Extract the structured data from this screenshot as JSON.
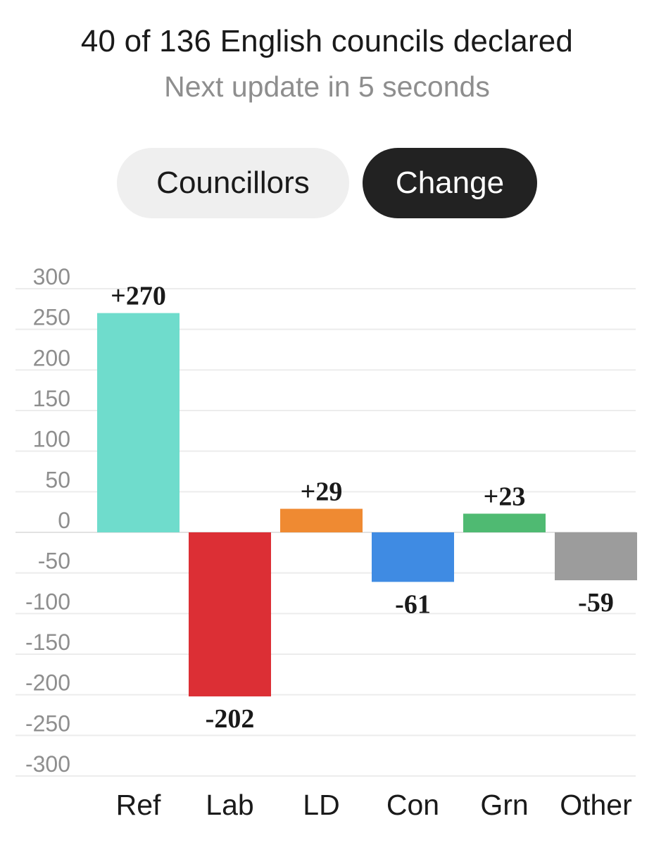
{
  "header": {
    "title": "40 of 136 English councils declared",
    "subtitle": "Next update in 5 seconds"
  },
  "toggle": {
    "councillors_label": "Councillors",
    "change_label": "Change",
    "selected": "Change"
  },
  "chart_data": {
    "type": "bar",
    "categories": [
      "Ref",
      "Lab",
      "LD",
      "Con",
      "Grn",
      "Other"
    ],
    "values": [
      270,
      -202,
      29,
      -61,
      23,
      -59
    ],
    "data_labels": [
      "+270",
      "-202",
      "+29",
      "-61",
      "+23",
      "-59"
    ],
    "colors": [
      "#6fdccc",
      "#dc2f35",
      "#ef8a32",
      "#3f8be3",
      "#4fba72",
      "#9c9c9c"
    ],
    "ylim": [
      -300,
      300
    ],
    "yticks": [
      300,
      250,
      200,
      150,
      100,
      50,
      0,
      -50,
      -100,
      -150,
      -200,
      -250,
      -300
    ],
    "grid": true,
    "xlabel": "",
    "ylabel": "",
    "title": ""
  }
}
